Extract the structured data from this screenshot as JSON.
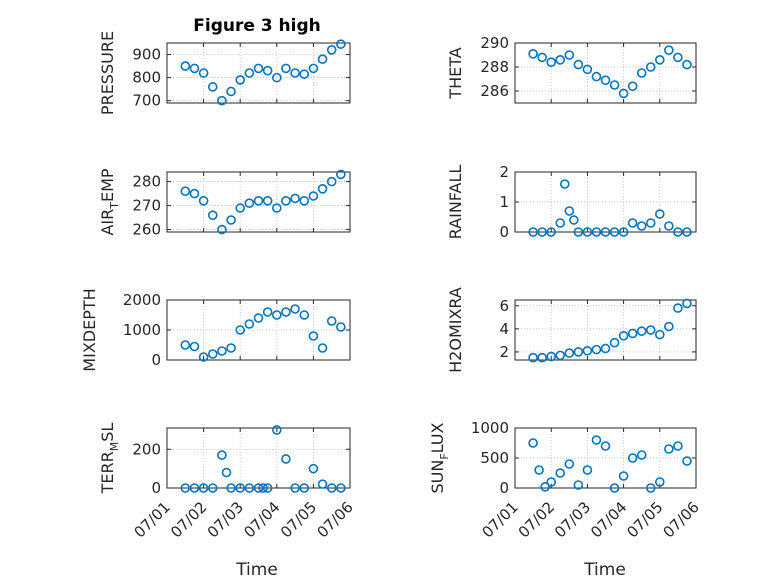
{
  "figure_title": "Figure 3 high",
  "colors": {
    "marker": "#0072BD",
    "axis": "#262626",
    "grid": "#b8b8b8"
  },
  "chart_data": [
    {
      "type": "scatter",
      "ylabel": "PRESSURE",
      "title": "Figure 3 high",
      "ylim": [
        690,
        950
      ],
      "yticks": [
        700,
        800,
        900
      ],
      "grid": true,
      "x": [
        "07/01 12:00",
        "07/01 18:00",
        "07/02 00:00",
        "07/02 06:00",
        "07/02 12:00",
        "07/02 18:00",
        "07/03 00:00",
        "07/03 06:00",
        "07/03 12:00",
        "07/03 18:00",
        "07/04 00:00",
        "07/04 06:00",
        "07/04 12:00",
        "07/04 18:00",
        "07/05 00:00",
        "07/05 06:00",
        "07/05 12:00",
        "07/05 18:00"
      ],
      "y": [
        850,
        840,
        820,
        760,
        700,
        740,
        790,
        820,
        840,
        830,
        800,
        840,
        820,
        815,
        840,
        880,
        920,
        945
      ]
    },
    {
      "type": "scatter",
      "ylabel": "THETA",
      "ylim": [
        285,
        290
      ],
      "yticks": [
        286,
        288,
        290
      ],
      "grid": true,
      "x": [
        "07/01 12:00",
        "07/01 18:00",
        "07/02 00:00",
        "07/02 06:00",
        "07/02 12:00",
        "07/02 18:00",
        "07/03 00:00",
        "07/03 06:00",
        "07/03 12:00",
        "07/03 18:00",
        "07/04 00:00",
        "07/04 06:00",
        "07/04 12:00",
        "07/04 18:00",
        "07/05 00:00",
        "07/05 06:00",
        "07/05 12:00",
        "07/05 18:00"
      ],
      "y": [
        289.1,
        288.8,
        288.4,
        288.6,
        289.0,
        288.2,
        287.8,
        287.2,
        286.9,
        286.5,
        285.8,
        286.4,
        287.5,
        288.0,
        288.6,
        289.4,
        288.8,
        288.2
      ]
    },
    {
      "type": "scatter",
      "ylabel": "AIR_TEMP",
      "ylim": [
        259,
        284
      ],
      "yticks": [
        260,
        270,
        280
      ],
      "grid": true,
      "x": [
        "07/01 12:00",
        "07/01 18:00",
        "07/02 00:00",
        "07/02 06:00",
        "07/02 12:00",
        "07/02 18:00",
        "07/03 00:00",
        "07/03 06:00",
        "07/03 12:00",
        "07/03 18:00",
        "07/04 00:00",
        "07/04 06:00",
        "07/04 12:00",
        "07/04 18:00",
        "07/05 00:00",
        "07/05 06:00",
        "07/05 12:00",
        "07/05 18:00"
      ],
      "y": [
        276,
        275,
        272,
        266,
        260,
        264,
        269,
        271,
        272,
        272,
        269,
        272,
        273,
        272,
        274,
        277,
        280,
        283
      ]
    },
    {
      "type": "scatter",
      "ylabel": "RAINFALL",
      "ylim": [
        0,
        2
      ],
      "yticks": [
        0,
        1,
        2
      ],
      "grid": true,
      "x": [
        "07/01 12:00",
        "07/01 18:00",
        "07/02 00:00",
        "07/02 06:00",
        "07/02 09:00",
        "07/02 12:00",
        "07/02 15:00",
        "07/02 18:00",
        "07/03 00:00",
        "07/03 06:00",
        "07/03 12:00",
        "07/03 18:00",
        "07/04 00:00",
        "07/04 06:00",
        "07/04 12:00",
        "07/04 18:00",
        "07/05 00:00",
        "07/05 06:00",
        "07/05 12:00",
        "07/05 18:00"
      ],
      "y": [
        0,
        0,
        0,
        0.3,
        1.6,
        0.7,
        0.4,
        0,
        0,
        0,
        0,
        0,
        0,
        0.3,
        0.2,
        0.3,
        0.6,
        0.2,
        0,
        0
      ]
    },
    {
      "type": "scatter",
      "ylabel": "MIXDEPTH",
      "ylim": [
        0,
        2000
      ],
      "yticks": [
        0,
        1000,
        2000
      ],
      "grid": true,
      "x": [
        "07/01 12:00",
        "07/01 18:00",
        "07/02 00:00",
        "07/02 06:00",
        "07/02 12:00",
        "07/02 18:00",
        "07/03 00:00",
        "07/03 06:00",
        "07/03 12:00",
        "07/03 18:00",
        "07/04 00:00",
        "07/04 06:00",
        "07/04 12:00",
        "07/04 18:00",
        "07/05 00:00",
        "07/05 06:00",
        "07/05 12:00",
        "07/05 18:00"
      ],
      "y": [
        500,
        450,
        100,
        200,
        300,
        400,
        1000,
        1200,
        1400,
        1600,
        1500,
        1600,
        1700,
        1500,
        800,
        400,
        1300,
        1100
      ]
    },
    {
      "type": "scatter",
      "ylabel": "H2OMIXRA",
      "ylim": [
        1.3,
        6.5
      ],
      "yticks": [
        2,
        4,
        6
      ],
      "grid": true,
      "x": [
        "07/01 12:00",
        "07/01 18:00",
        "07/02 00:00",
        "07/02 06:00",
        "07/02 12:00",
        "07/02 18:00",
        "07/03 00:00",
        "07/03 06:00",
        "07/03 12:00",
        "07/03 18:00",
        "07/04 00:00",
        "07/04 06:00",
        "07/04 12:00",
        "07/04 18:00",
        "07/05 00:00",
        "07/05 06:00",
        "07/05 12:00",
        "07/05 18:00"
      ],
      "y": [
        1.5,
        1.5,
        1.6,
        1.7,
        1.9,
        2.0,
        2.1,
        2.2,
        2.3,
        2.8,
        3.4,
        3.6,
        3.8,
        3.9,
        3.5,
        4.2,
        5.8,
        6.2
      ]
    },
    {
      "type": "scatter",
      "ylabel": "TERR_MSL",
      "ylim": [
        0,
        310
      ],
      "yticks": [
        0,
        200
      ],
      "grid": true,
      "x": [
        "07/01 12:00",
        "07/01 18:00",
        "07/02 00:00",
        "07/02 06:00",
        "07/02 12:00",
        "07/02 15:00",
        "07/02 18:00",
        "07/03 00:00",
        "07/03 06:00",
        "07/03 12:00",
        "07/03 15:00",
        "07/03 18:00",
        "07/04 00:00",
        "07/04 06:00",
        "07/04 12:00",
        "07/04 18:00",
        "07/05 00:00",
        "07/05 06:00",
        "07/05 12:00",
        "07/05 18:00"
      ],
      "y": [
        0,
        0,
        0,
        0,
        170,
        80,
        0,
        0,
        0,
        0,
        0,
        0,
        300,
        150,
        0,
        0,
        100,
        20,
        0,
        0
      ]
    },
    {
      "type": "scatter",
      "ylabel": "SUN_FLUX",
      "ylim": [
        0,
        1000
      ],
      "yticks": [
        0,
        500,
        1000
      ],
      "grid": true,
      "x": [
        "07/01 12:00",
        "07/01 16:00",
        "07/01 20:00",
        "07/02 00:00",
        "07/02 06:00",
        "07/02 12:00",
        "07/02 18:00",
        "07/03 00:00",
        "07/03 06:00",
        "07/03 12:00",
        "07/03 18:00",
        "07/04 00:00",
        "07/04 06:00",
        "07/04 12:00",
        "07/04 18:00",
        "07/05 00:00",
        "07/05 06:00",
        "07/05 12:00",
        "07/05 18:00"
      ],
      "y": [
        750,
        300,
        20,
        100,
        250,
        400,
        50,
        300,
        800,
        700,
        0,
        200,
        500,
        550,
        0,
        100,
        650,
        700,
        450
      ]
    }
  ],
  "x_axis": {
    "ticks": [
      "07/01",
      "07/02",
      "07/03",
      "07/04",
      "07/05",
      "07/06"
    ],
    "label": "Time"
  }
}
